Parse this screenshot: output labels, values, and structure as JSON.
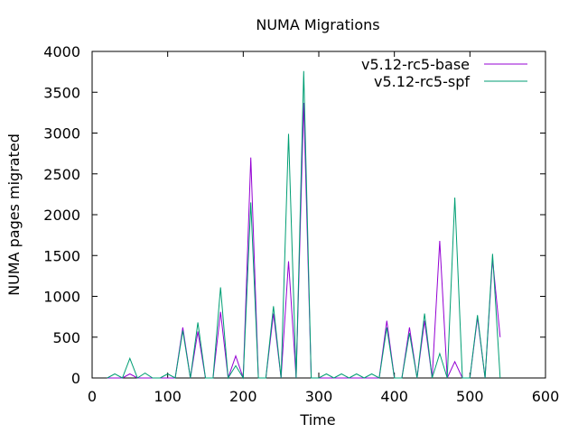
{
  "chart_data": {
    "type": "line",
    "title": "NUMA Migrations",
    "xlabel": "Time",
    "ylabel": "NUMA pages migrated",
    "xlim": [
      0,
      600
    ],
    "ylim": [
      0,
      4000
    ],
    "xticks": [
      0,
      100,
      200,
      300,
      400,
      500,
      600
    ],
    "yticks": [
      0,
      500,
      1000,
      1500,
      2000,
      2500,
      3000,
      3500,
      4000
    ],
    "legend_position": "top-right",
    "grid": false,
    "series": [
      {
        "name": "v5.12-rc5-base",
        "color": "#9400d3",
        "x": [
          20,
          30,
          40,
          50,
          60,
          70,
          80,
          90,
          100,
          110,
          120,
          130,
          140,
          150,
          160,
          170,
          180,
          190,
          200,
          210,
          220,
          230,
          240,
          250,
          260,
          270,
          280,
          290,
          300,
          310,
          320,
          330,
          340,
          350,
          360,
          370,
          380,
          390,
          400,
          410,
          420,
          430,
          440,
          450,
          460,
          470,
          480,
          490,
          500,
          510,
          520,
          530,
          540
        ],
        "y": [
          0,
          0,
          0,
          50,
          0,
          0,
          0,
          0,
          0,
          0,
          620,
          0,
          570,
          0,
          0,
          810,
          0,
          270,
          0,
          2700,
          0,
          0,
          790,
          0,
          1430,
          0,
          3370,
          0,
          0,
          0,
          0,
          0,
          0,
          0,
          0,
          0,
          0,
          700,
          0,
          0,
          620,
          0,
          700,
          0,
          1680,
          0,
          200,
          0,
          0,
          740,
          0,
          1460,
          500
        ]
      },
      {
        "name": "v5.12-rc5-spf",
        "color": "#009e73",
        "x": [
          20,
          30,
          40,
          50,
          60,
          70,
          80,
          90,
          100,
          110,
          120,
          130,
          140,
          150,
          160,
          170,
          180,
          190,
          200,
          210,
          220,
          230,
          240,
          250,
          260,
          270,
          280,
          290,
          300,
          310,
          320,
          330,
          340,
          350,
          360,
          370,
          380,
          390,
          400,
          410,
          420,
          430,
          440,
          450,
          460,
          470,
          480,
          490,
          500,
          510,
          520,
          530,
          540
        ],
        "y": [
          0,
          50,
          0,
          240,
          0,
          60,
          0,
          0,
          50,
          0,
          580,
          0,
          680,
          0,
          0,
          1110,
          0,
          150,
          0,
          2150,
          0,
          0,
          880,
          0,
          2990,
          0,
          3760,
          0,
          0,
          50,
          0,
          50,
          0,
          50,
          0,
          50,
          0,
          620,
          0,
          0,
          550,
          0,
          790,
          0,
          300,
          0,
          2210,
          0,
          0,
          770,
          0,
          1520,
          0
        ]
      }
    ]
  }
}
